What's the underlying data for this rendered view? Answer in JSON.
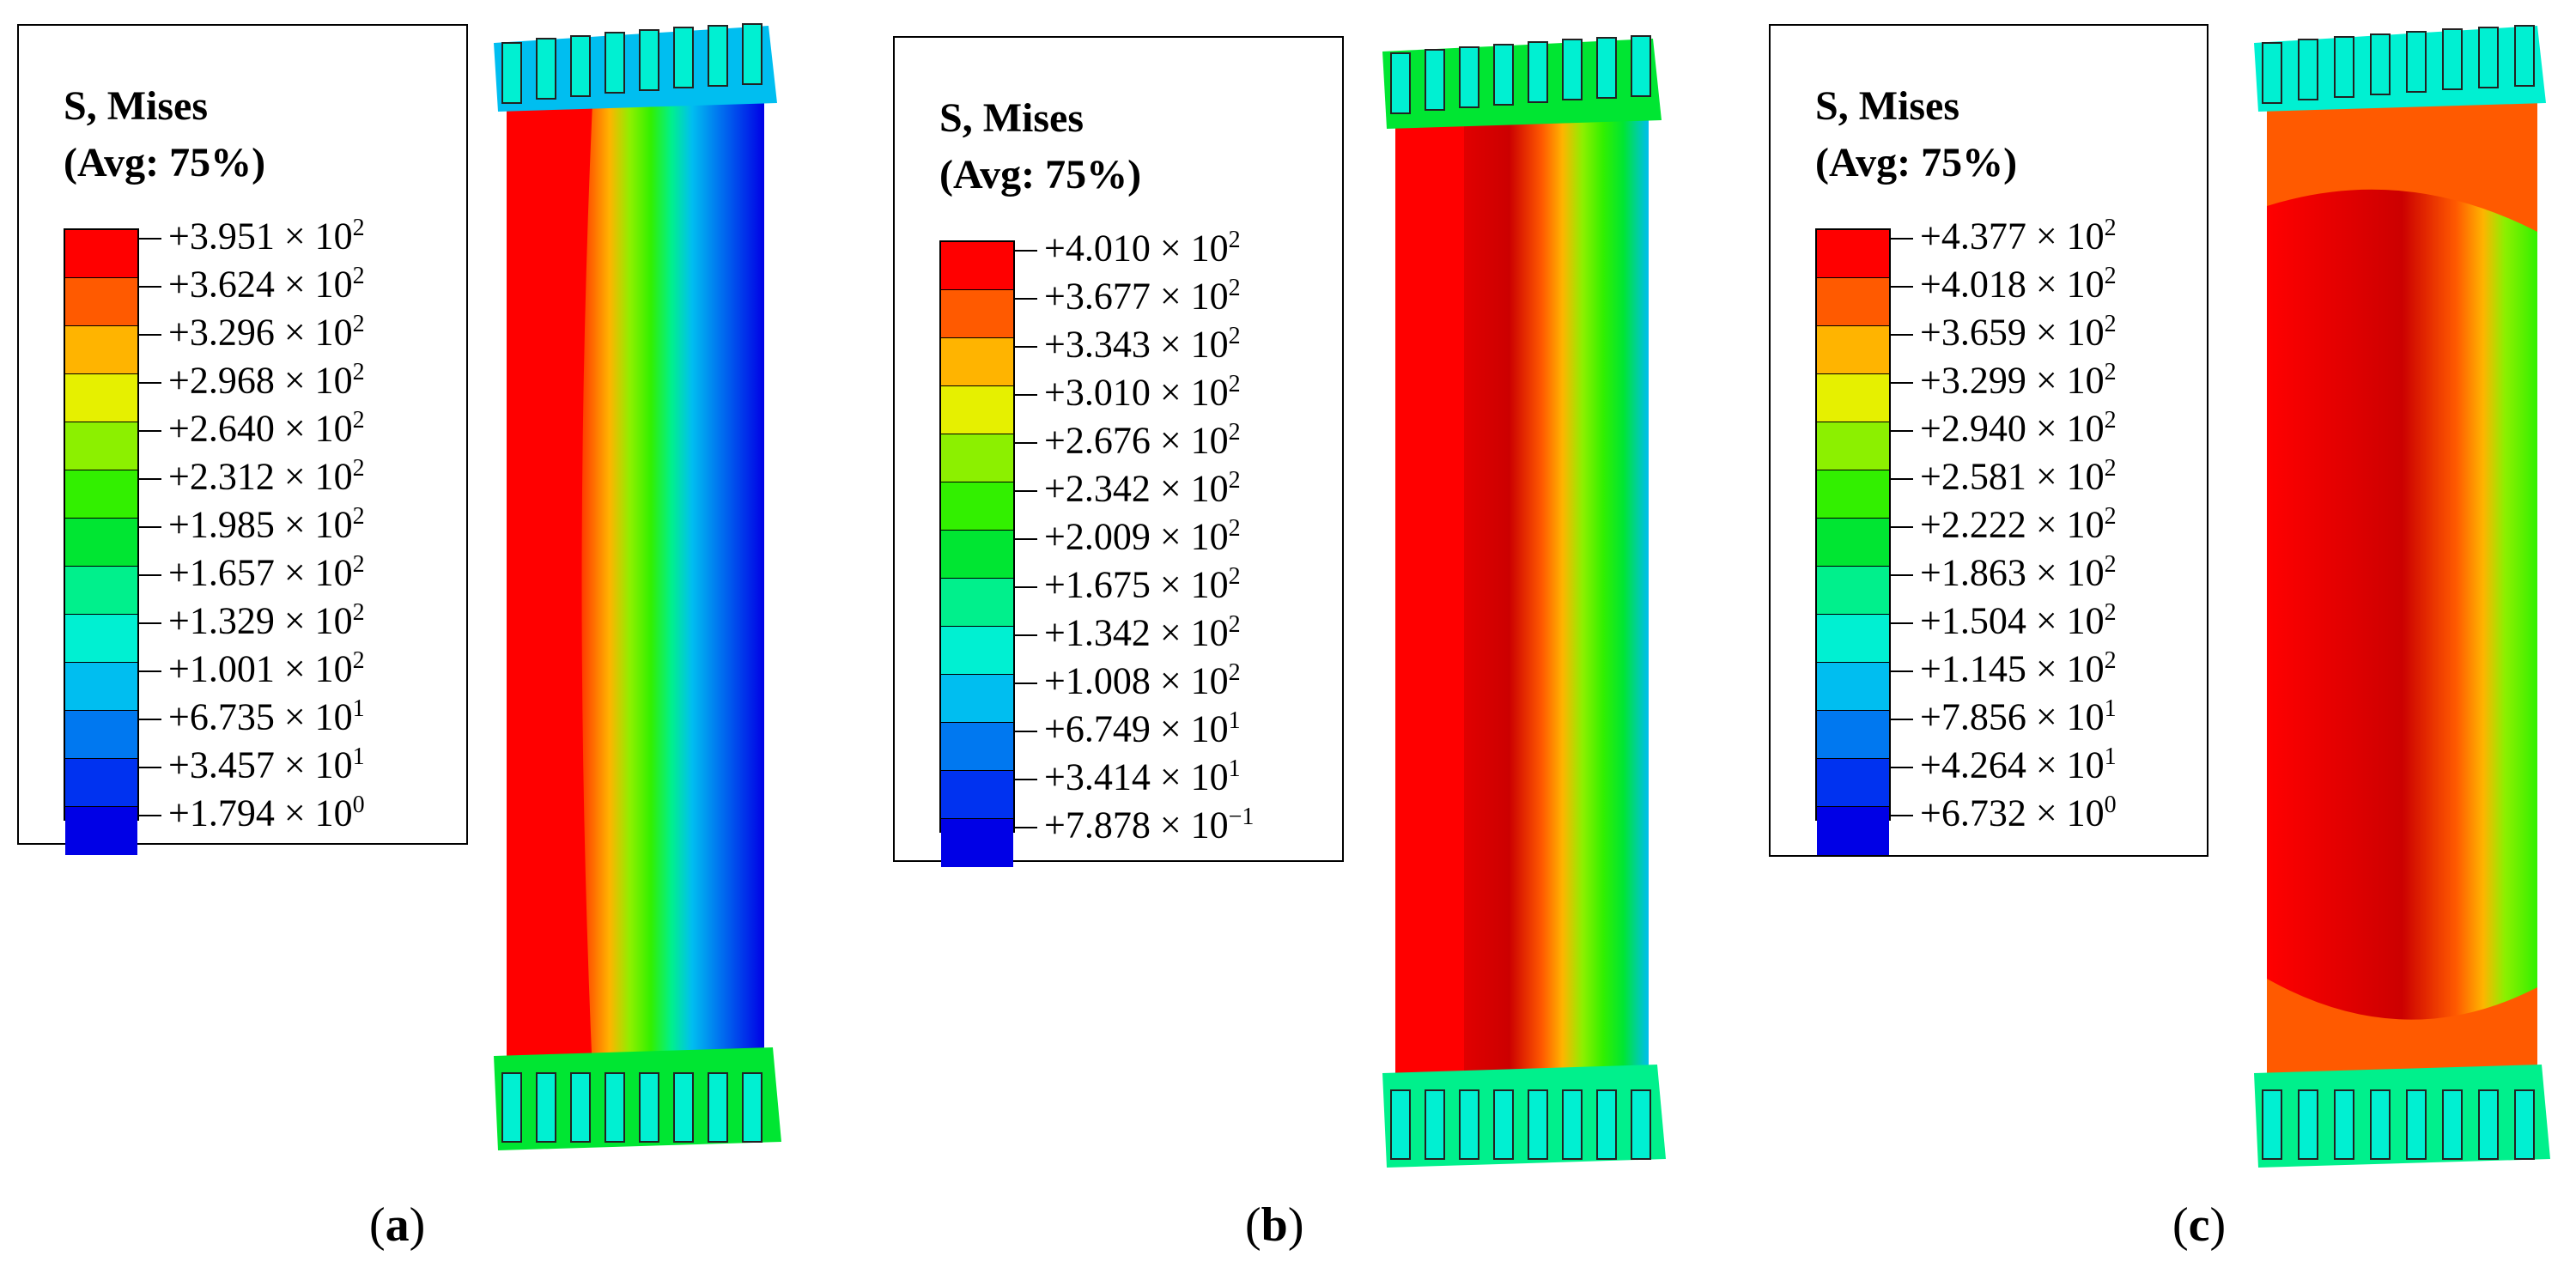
{
  "panels": [
    {
      "id": "a",
      "caption": "a",
      "legend": {
        "title_line1": "S, Mises",
        "title_line2": "(Avg: 75%)",
        "values": [
          "+3.951",
          "+3.624",
          "+3.296",
          "+2.968",
          "+2.640",
          "+2.312",
          "+1.985",
          "+1.657",
          "+1.329",
          "+1.001",
          "+6.735",
          "+3.457",
          "+1.794"
        ],
        "exponents": [
          "2",
          "2",
          "2",
          "2",
          "2",
          "2",
          "2",
          "2",
          "2",
          "2",
          "1",
          "1",
          "0"
        ]
      }
    },
    {
      "id": "b",
      "caption": "b",
      "legend": {
        "title_line1": "S, Mises",
        "title_line2": "(Avg: 75%)",
        "values": [
          "+4.010",
          "+3.677",
          "+3.343",
          "+3.010",
          "+2.676",
          "+2.342",
          "+2.009",
          "+1.675",
          "+1.342",
          "+1.008",
          "+6.749",
          "+3.414",
          "+7.878"
        ],
        "exponents": [
          "2",
          "2",
          "2",
          "2",
          "2",
          "2",
          "2",
          "2",
          "2",
          "2",
          "1",
          "1",
          "−1"
        ]
      }
    },
    {
      "id": "c",
      "caption": "c",
      "legend": {
        "title_line1": "S, Mises",
        "title_line2": "(Avg: 75%)",
        "values": [
          "+4.377",
          "+4.018",
          "+3.659",
          "+3.299",
          "+2.940",
          "+2.581",
          "+2.222",
          "+1.863",
          "+1.504",
          "+1.145",
          "+7.856",
          "+4.264",
          "+6.732"
        ],
        "exponents": [
          "2",
          "2",
          "2",
          "2",
          "2",
          "2",
          "2",
          "2",
          "2",
          "2",
          "1",
          "1",
          "0"
        ]
      }
    }
  ],
  "times_symbol": "× 10",
  "colormap": [
    "#ff0000",
    "#ff5a00",
    "#ffb400",
    "#e6f000",
    "#8cf000",
    "#32f000",
    "#00e632",
    "#00f08c",
    "#00f0d2",
    "#00bef0",
    "#0078f0",
    "#0032f0",
    "#0000e6"
  ]
}
